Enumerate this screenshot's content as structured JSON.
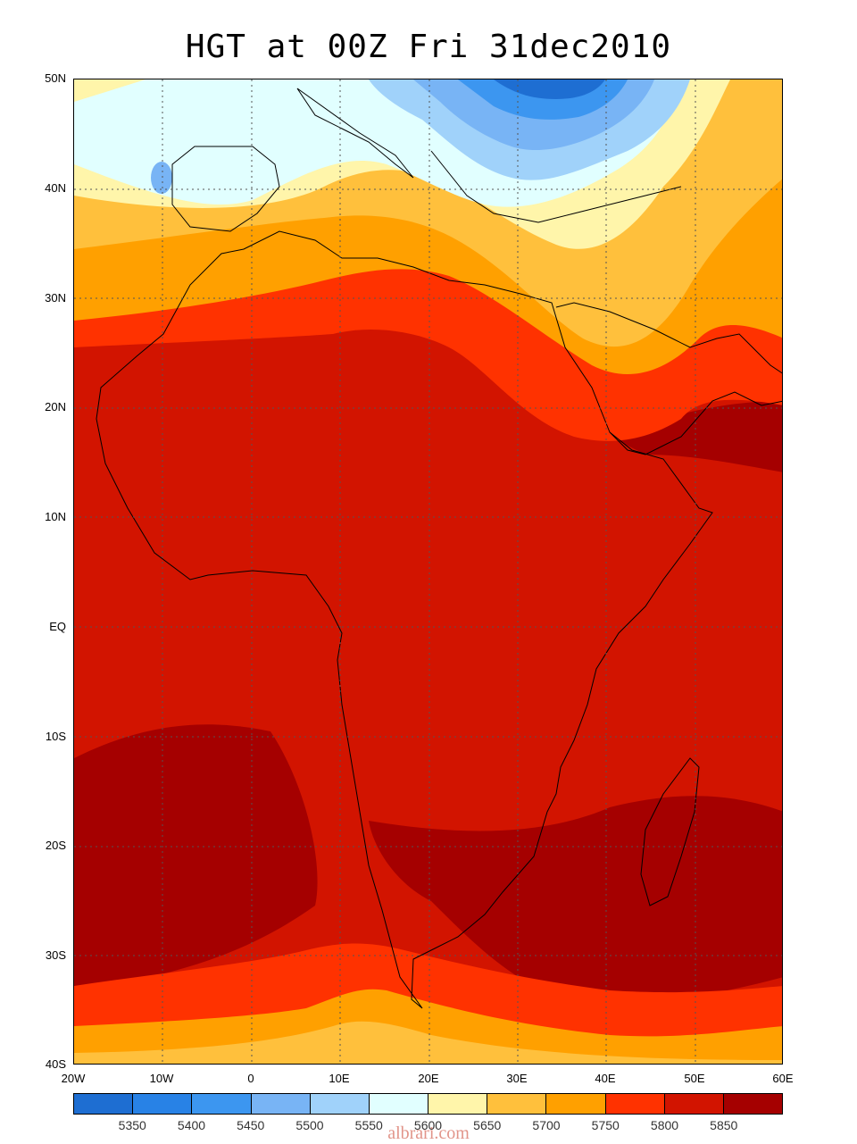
{
  "title": "HGT at 00Z Fri 31dec2010",
  "lat_labels": [
    "50N",
    "40N",
    "30N",
    "20N",
    "10N",
    "EQ",
    "10S",
    "20S",
    "30S",
    "40S"
  ],
  "lon_labels": [
    "20W",
    "10W",
    "0",
    "10E",
    "20E",
    "30E",
    "40E",
    "50E",
    "60E"
  ],
  "colorbar": {
    "colors": [
      "#1e6ed2",
      "#2882e6",
      "#3c96f0",
      "#78b4f5",
      "#a0d2fa",
      "#e1ffff",
      "#fff5aa",
      "#ffc03c",
      "#ffa000",
      "#ff3200",
      "#d21400",
      "#a50000"
    ],
    "labels": [
      "5350",
      "5400",
      "5450",
      "5500",
      "5550",
      "5600",
      "5650",
      "5700",
      "5750",
      "5800",
      "5850"
    ]
  },
  "watermark": "albrari.com"
}
